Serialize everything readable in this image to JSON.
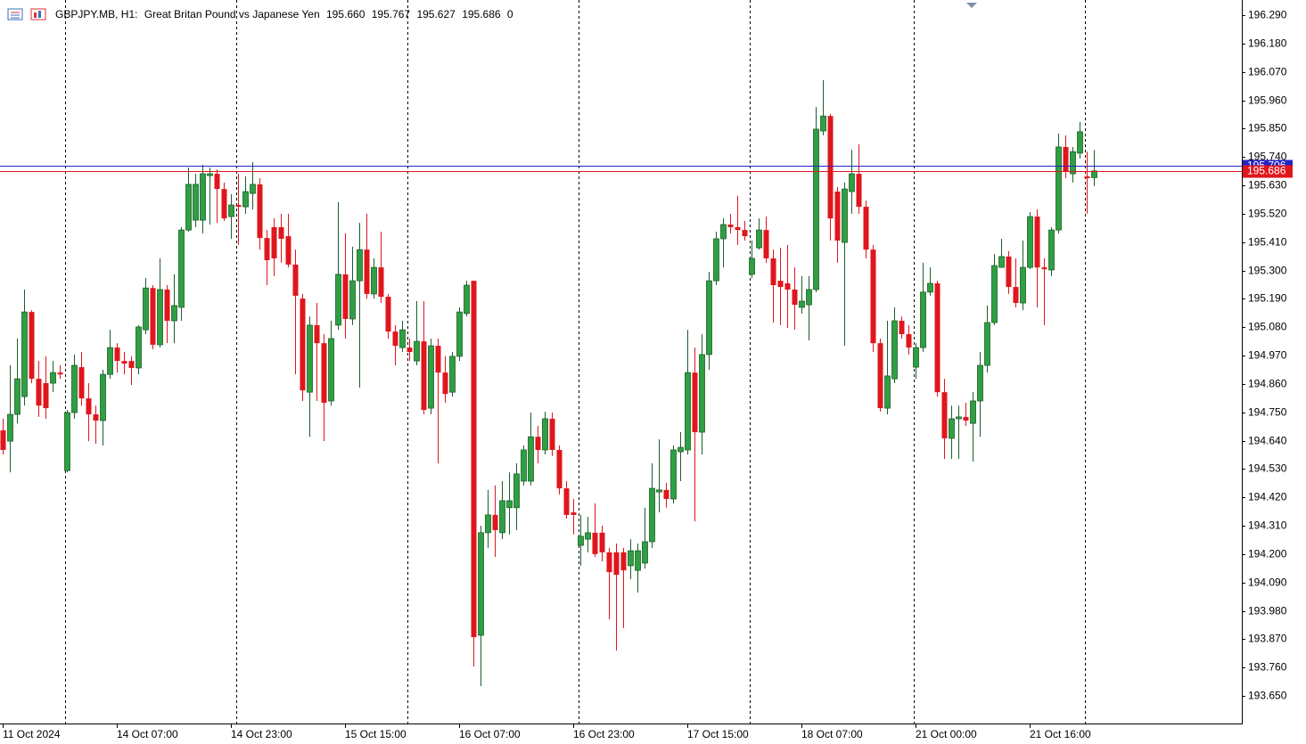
{
  "chart_data": {
    "type": "candlestick",
    "symbol": "GBPJPY.MB, H1:",
    "description": "Great Britan Pound vs Japanese Yen",
    "ohlc_labels": [
      "195.660",
      "195.767",
      "195.627",
      "195.686"
    ],
    "volume": 0,
    "up_color": "#2ea043",
    "down_color": "#e0161d",
    "ask": 195.706,
    "ask_color": "#2424c8",
    "ylim": [
      193.543,
      196.349
    ],
    "yticks": [
      {
        "value": 196.29,
        "label": "196.290"
      },
      {
        "value": 196.18,
        "label": "196.180"
      },
      {
        "value": 196.07,
        "label": "196.070"
      },
      {
        "value": 195.96,
        "label": "195.960"
      },
      {
        "value": 195.85,
        "label": "195.850"
      },
      {
        "value": 195.74,
        "label": "195.740"
      },
      {
        "value": 195.63,
        "label": "195.630"
      },
      {
        "value": 195.52,
        "label": "195.520"
      },
      {
        "value": 195.41,
        "label": "195.410"
      },
      {
        "value": 195.3,
        "label": "195.300"
      },
      {
        "value": 195.19,
        "label": "195.190"
      },
      {
        "value": 195.08,
        "label": "195.080"
      },
      {
        "value": 194.97,
        "label": "194.970"
      },
      {
        "value": 194.86,
        "label": "194.860"
      },
      {
        "value": 194.75,
        "label": "194.750"
      },
      {
        "value": 194.64,
        "label": "194.640"
      },
      {
        "value": 194.53,
        "label": "194.530"
      },
      {
        "value": 194.42,
        "label": "194.420"
      },
      {
        "value": 194.31,
        "label": "194.310"
      },
      {
        "value": 194.2,
        "label": "194.200"
      },
      {
        "value": 194.09,
        "label": "194.090"
      },
      {
        "value": 193.98,
        "label": "193.980"
      },
      {
        "value": 193.87,
        "label": "193.870"
      },
      {
        "value": 193.76,
        "label": "193.760"
      },
      {
        "value": 193.65,
        "label": "193.650"
      }
    ],
    "xticks": [
      {
        "value": 0,
        "label": "11 Oct 2024"
      },
      {
        "value": 16,
        "label": "14 Oct 07:00"
      },
      {
        "value": 32,
        "label": "14 Oct 23:00"
      },
      {
        "value": 48,
        "label": "15 Oct 15:00"
      },
      {
        "value": 64,
        "label": "16 Oct 07:00"
      },
      {
        "value": 80,
        "label": "16 Oct 23:00"
      },
      {
        "value": 96,
        "label": "17 Oct 15:00"
      },
      {
        "value": 112,
        "label": "18 Oct 07:00"
      },
      {
        "value": 128,
        "label": "21 Oct 00:00"
      },
      {
        "value": 144,
        "label": "21 Oct 16:00"
      }
    ],
    "open": [
      194.68,
      194.638,
      194.742,
      194.811,
      195.139,
      194.88,
      194.863,
      194.863,
      194.904,
      194.524,
      194.749,
      194.925,
      194.804,
      194.742,
      194.718,
      194.897,
      195.001,
      194.949,
      194.949,
      194.922,
      195.07,
      195.232,
      195.012,
      195.226,
      195.105,
      195.157,
      195.457,
      195.495,
      195.495,
      195.668,
      195.675,
      195.616,
      195.509,
      195.554,
      195.547,
      195.599,
      195.634,
      195.426,
      195.468,
      195.468,
      195.433,
      195.323,
      195.191,
      194.828,
      195.088,
      195.018,
      194.794,
      195.088,
      195.285,
      195.112,
      195.26,
      195.381,
      195.209,
      195.312,
      195.198,
      195.063,
      195.001,
      195.001,
      194.949,
      195.025,
      194.766,
      195.008,
      194.904,
      194.828,
      194.967,
      195.133,
      195.26,
      193.885,
      194.283,
      194.352,
      194.283,
      194.38,
      194.38,
      194.483,
      194.483,
      194.655,
      194.604,
      194.725,
      194.604,
      194.455,
      194.362,
      194.234,
      194.258,
      194.283,
      194.283,
      194.207,
      194.207,
      194.207,
      194.155,
      194.137,
      194.165,
      194.248,
      194.441,
      194.449,
      194.414,
      194.597,
      194.604,
      194.904,
      194.673,
      194.974,
      195.26,
      195.423,
      195.478,
      195.468,
      195.457,
      195.285,
      195.388,
      195.457,
      195.347,
      195.26,
      195.25,
      195.226,
      195.157,
      195.167,
      195.226,
      195.841,
      195.899,
      195.606,
      195.409,
      195.606,
      195.675,
      195.547,
      195.381,
      195.018,
      194.766,
      194.88,
      195.105,
      195.053,
      194.925,
      195.001,
      195.216,
      195.25,
      194.828,
      194.649,
      194.725,
      194.732,
      194.707,
      194.794,
      194.932,
      195.098,
      195.312,
      195.354,
      195.236,
      195.174,
      195.312,
      195.509,
      195.312,
      195.302,
      195.457,
      195.779,
      195.675,
      195.755,
      195.665,
      195.66
    ],
    "high": [
      194.725,
      194.932,
      195.036,
      195.226,
      195.146,
      194.949,
      194.967,
      194.949,
      194.932,
      194.759,
      194.974,
      194.984,
      194.863,
      194.776,
      194.915,
      195.07,
      195.018,
      194.984,
      194.967,
      195.088,
      195.271,
      195.243,
      195.347,
      195.243,
      195.285,
      195.468,
      195.699,
      195.675,
      195.71,
      195.699,
      195.692,
      195.641,
      195.596,
      195.675,
      195.665,
      195.72,
      195.658,
      195.457,
      195.502,
      195.52,
      195.52,
      195.381,
      195.209,
      195.122,
      195.174,
      195.053,
      195.105,
      195.565,
      195.444,
      195.392,
      195.485,
      195.52,
      195.347,
      195.45,
      195.209,
      195.088,
      195.105,
      195.036,
      195.181,
      195.181,
      195.036,
      195.036,
      194.967,
      194.984,
      195.157,
      195.26,
      195.26,
      194.31,
      194.449,
      194.466,
      194.483,
      194.517,
      194.552,
      194.621,
      194.749,
      194.697,
      194.752,
      194.749,
      194.621,
      194.483,
      194.414,
      194.352,
      194.345,
      194.397,
      194.31,
      194.224,
      194.241,
      194.224,
      194.258,
      194.241,
      194.38,
      194.552,
      194.645,
      194.476,
      194.621,
      194.673,
      195.07,
      195.001,
      195.053,
      195.295,
      195.45,
      195.502,
      195.52,
      195.589,
      195.492,
      195.416,
      195.502,
      195.509,
      195.381,
      195.388,
      195.399,
      195.312,
      195.278,
      195.278,
      195.934,
      196.038,
      195.907,
      195.623,
      195.641,
      195.768,
      195.789,
      195.571,
      195.399,
      195.036,
      195.105,
      195.157,
      195.122,
      195.088,
      195.018,
      195.33,
      195.312,
      195.26,
      194.88,
      194.776,
      194.776,
      194.787,
      194.828,
      194.984,
      195.164,
      195.364,
      195.423,
      195.375,
      195.347,
      195.416,
      195.526,
      195.537,
      195.347,
      195.468,
      195.831,
      195.824,
      195.779,
      195.875,
      195.761,
      195.767
    ],
    "low": [
      194.586,
      194.517,
      194.707,
      194.776,
      194.863,
      194.732,
      194.725,
      194.828,
      194.88,
      194.517,
      194.725,
      194.776,
      194.638,
      194.628,
      194.621,
      194.88,
      194.904,
      194.897,
      194.856,
      194.897,
      195.053,
      194.994,
      195.001,
      195.018,
      195.018,
      195.105,
      195.45,
      195.468,
      195.444,
      195.478,
      195.485,
      195.492,
      195.423,
      195.399,
      195.52,
      195.537,
      195.381,
      195.243,
      195.278,
      195.33,
      195.312,
      194.897,
      194.794,
      194.655,
      194.794,
      194.638,
      194.776,
      195.07,
      195.036,
      195.088,
      194.846,
      195.191,
      195.191,
      195.174,
      195.036,
      194.932,
      194.984,
      194.949,
      194.932,
      194.742,
      194.742,
      194.552,
      194.787,
      194.811,
      194.949,
      195.122,
      193.764,
      193.688,
      194.224,
      194.189,
      194.258,
      194.276,
      194.293,
      194.466,
      194.466,
      194.552,
      194.586,
      194.58,
      194.431,
      194.338,
      194.276,
      194.155,
      194.207,
      194.189,
      194.172,
      193.947,
      193.826,
      193.913,
      194.103,
      194.051,
      194.144,
      194.224,
      194.362,
      194.38,
      194.396,
      194.483,
      194.586,
      194.327,
      194.586,
      194.915,
      195.243,
      195.312,
      195.444,
      195.399,
      195.416,
      195.271,
      195.381,
      195.33,
      195.098,
      195.088,
      195.077,
      195.07,
      195.133,
      195.029,
      195.216,
      195.824,
      195.416,
      195.33,
      195.008,
      195.52,
      195.52,
      195.347,
      194.984,
      194.752,
      194.742,
      194.863,
      195.036,
      194.974,
      194.88,
      194.984,
      195.202,
      194.811,
      194.569,
      194.569,
      194.569,
      194.697,
      194.559,
      194.655,
      194.904,
      195.088,
      195.312,
      195.209,
      195.157,
      195.146,
      195.305,
      195.157,
      195.088,
      195.278,
      195.444,
      195.658,
      195.641,
      195.734,
      195.52,
      195.627
    ],
    "close": [
      194.604,
      194.742,
      194.88,
      195.139,
      194.88,
      194.776,
      194.766,
      194.904,
      194.897,
      194.749,
      194.932,
      194.804,
      194.742,
      194.718,
      194.897,
      195.001,
      194.949,
      194.939,
      194.922,
      195.081,
      195.232,
      195.012,
      195.226,
      195.105,
      195.164,
      195.457,
      195.634,
      195.634,
      195.675,
      195.675,
      195.616,
      195.502,
      195.554,
      195.547,
      195.606,
      195.634,
      195.426,
      195.34,
      195.347,
      195.423,
      195.323,
      195.202,
      194.835,
      195.088,
      195.018,
      194.787,
      195.036,
      195.285,
      195.112,
      195.26,
      195.381,
      195.209,
      195.312,
      195.198,
      195.063,
      195.008,
      195.07,
      194.984,
      195.025,
      194.759,
      195.008,
      194.904,
      194.821,
      194.967,
      195.139,
      195.243,
      193.878,
      194.283,
      194.352,
      194.293,
      194.407,
      194.407,
      194.511,
      194.604,
      194.655,
      194.604,
      194.725,
      194.604,
      194.455,
      194.352,
      194.352,
      194.269,
      194.283,
      194.2,
      194.207,
      194.13,
      194.12,
      194.137,
      194.213,
      194.213,
      194.248,
      194.455,
      194.449,
      194.414,
      194.604,
      194.614,
      194.904,
      194.673,
      194.974,
      195.26,
      195.423,
      195.478,
      195.468,
      195.457,
      195.433,
      195.347,
      195.457,
      195.347,
      195.243,
      195.236,
      195.226,
      195.167,
      195.181,
      195.226,
      195.848,
      195.899,
      195.502,
      195.416,
      195.616,
      195.675,
      195.547,
      195.381,
      195.018,
      194.766,
      194.891,
      195.105,
      195.053,
      195.001,
      195.001,
      195.216,
      195.25,
      194.828,
      194.649,
      194.725,
      194.732,
      194.718,
      194.794,
      194.932,
      195.098,
      195.319,
      195.354,
      195.236,
      195.174,
      195.312,
      195.509,
      195.312,
      195.305,
      195.457,
      195.779,
      195.682,
      195.761,
      195.838,
      195.658,
      195.686
    ]
  }
}
